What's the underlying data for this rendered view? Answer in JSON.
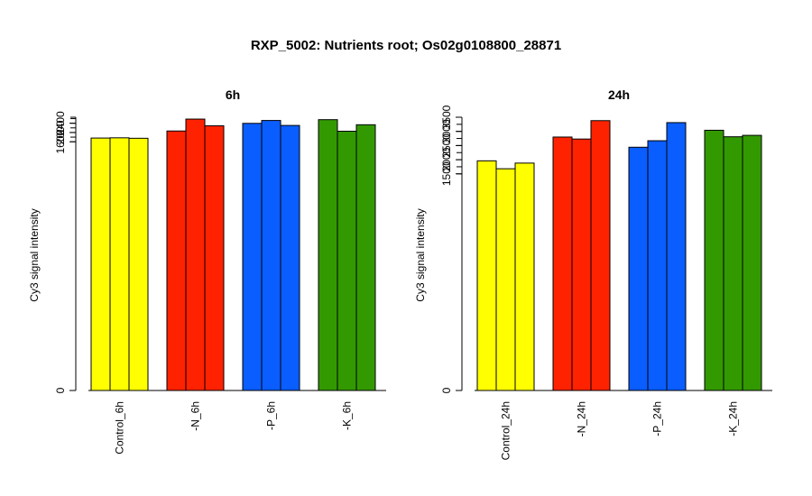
{
  "figure": {
    "title": "RXP_5002: Nutrients root; Os02g0108800_28871"
  },
  "chart_data": [
    {
      "type": "bar",
      "title": "6h",
      "ylabel": "Cy3 signal intensity",
      "yticks": [
        0,
        1600,
        2000,
        2400
      ],
      "ybreak": true,
      "categories": [
        "Control_6h",
        "-N_6h",
        "-P_6h",
        "-K_6h"
      ],
      "group_colors": [
        "#ffff00",
        "#ff2200",
        "#0a5eff",
        "#339900"
      ],
      "values": [
        [
          1760,
          1770,
          1750
        ],
        [
          2065,
          2580,
          2290
        ],
        [
          2395,
          2520,
          2305
        ],
        [
          2555,
          2055,
          2335
        ]
      ]
    },
    {
      "type": "bar",
      "title": "24h",
      "ylabel": "Cy3 signal intensity",
      "yticks": [
        0,
        1500,
        2000,
        2500,
        3000,
        3500
      ],
      "ybreak": true,
      "categories": [
        "Control_24h",
        "-N_24h",
        "-P_24h",
        "-K_24h"
      ],
      "group_colors": [
        "#ffff00",
        "#ff2200",
        "#0a5eff",
        "#339900"
      ],
      "values": [
        [
          1960,
          1680,
          1880
        ],
        [
          2800,
          2730,
          3380
        ],
        [
          2440,
          2670,
          3310
        ],
        [
          3040,
          2810,
          2860
        ]
      ]
    }
  ]
}
